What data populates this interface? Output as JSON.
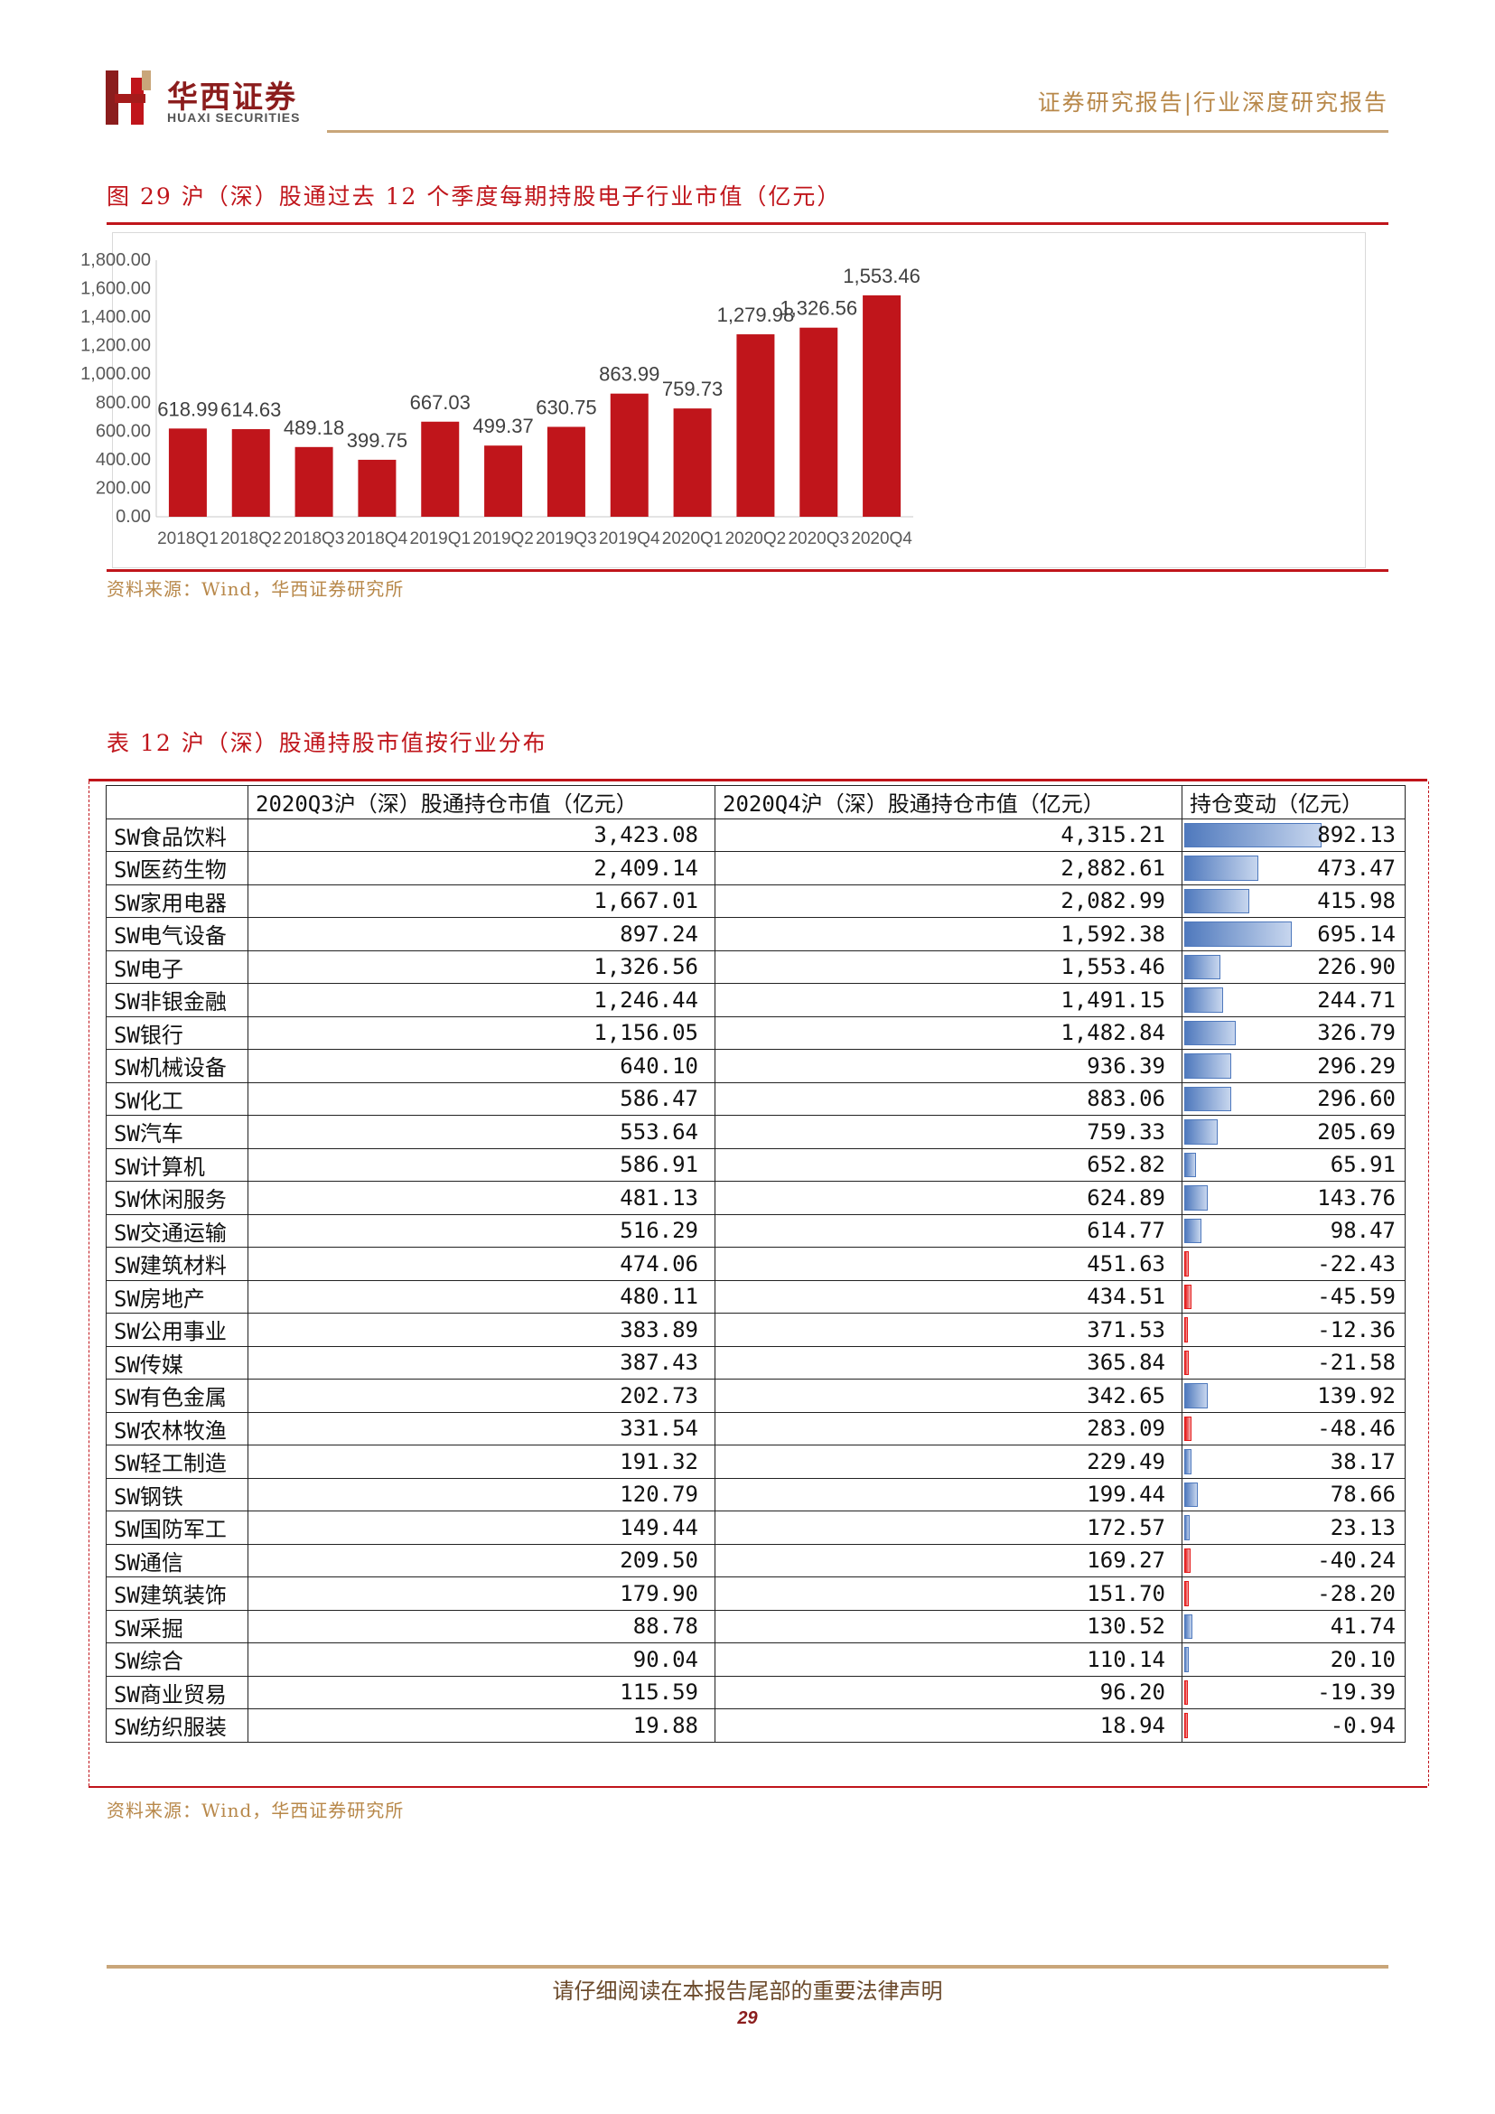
{
  "header": {
    "brand_cn": "华西证券",
    "brand_en": "HUAXI SECURITIES",
    "right_text": "证券研究报告|行业深度研究报告",
    "brand_color": "#8b1d1d",
    "accent_color": "#c0151b",
    "gold_color": "#b8884a"
  },
  "figure": {
    "title": "图 29  沪（深）股通过去 12 个季度每期持股电子行业市值（亿元）",
    "source": "资料来源：Wind，华西证券研究所"
  },
  "chart_data": {
    "type": "bar",
    "categories": [
      "2018Q1",
      "2018Q2",
      "2018Q3",
      "2018Q4",
      "2019Q1",
      "2019Q2",
      "2019Q3",
      "2019Q4",
      "2020Q1",
      "2020Q2",
      "2020Q3",
      "2020Q4"
    ],
    "values": [
      618.99,
      614.63,
      489.18,
      399.75,
      667.03,
      499.37,
      630.75,
      863.99,
      759.73,
      1279.98,
      1326.56,
      1553.46
    ],
    "value_labels": [
      "618.99",
      "614.63",
      "489.18",
      "399.75",
      "667.03",
      "499.37",
      "630.75",
      "863.99",
      "759.73",
      "1,279.98",
      "1,326.56",
      "1,553.46"
    ],
    "y_ticks": [
      "0.00",
      "200.00",
      "400.00",
      "600.00",
      "800.00",
      "1,000.00",
      "1,200.00",
      "1,400.00",
      "1,600.00",
      "1,800.00"
    ],
    "ylim": [
      0,
      1800
    ],
    "bar_color": "#c0151b",
    "grid": false,
    "legend": "none",
    "title": "",
    "xlabel": "",
    "ylabel": ""
  },
  "table": {
    "title": "表 12 沪（深）股通持股市值按行业分布",
    "headers": [
      "",
      "2020Q3沪（深）股通持仓市值（亿元）",
      "2020Q4沪（深）股通持仓市值（亿元）",
      "持仓变动（亿元）"
    ],
    "rows": [
      {
        "name": "SW食品饮料",
        "q3": "3,423.08",
        "q4": "4,315.21",
        "chg": "892.13",
        "chg_value": 892.13
      },
      {
        "name": "SW医药生物",
        "q3": "2,409.14",
        "q4": "2,882.61",
        "chg": "473.47",
        "chg_value": 473.47
      },
      {
        "name": "SW家用电器",
        "q3": "1,667.01",
        "q4": "2,082.99",
        "chg": "415.98",
        "chg_value": 415.98
      },
      {
        "name": "SW电气设备",
        "q3": "897.24",
        "q4": "1,592.38",
        "chg": "695.14",
        "chg_value": 695.14
      },
      {
        "name": "SW电子",
        "q3": "1,326.56",
        "q4": "1,553.46",
        "chg": "226.90",
        "chg_value": 226.9
      },
      {
        "name": "SW非银金融",
        "q3": "1,246.44",
        "q4": "1,491.15",
        "chg": "244.71",
        "chg_value": 244.71
      },
      {
        "name": "SW银行",
        "q3": "1,156.05",
        "q4": "1,482.84",
        "chg": "326.79",
        "chg_value": 326.79
      },
      {
        "name": "SW机械设备",
        "q3": "640.10",
        "q4": "936.39",
        "chg": "296.29",
        "chg_value": 296.29
      },
      {
        "name": "SW化工",
        "q3": "586.47",
        "q4": "883.06",
        "chg": "296.60",
        "chg_value": 296.6
      },
      {
        "name": "SW汽车",
        "q3": "553.64",
        "q4": "759.33",
        "chg": "205.69",
        "chg_value": 205.69
      },
      {
        "name": "SW计算机",
        "q3": "586.91",
        "q4": "652.82",
        "chg": "65.91",
        "chg_value": 65.91
      },
      {
        "name": "SW休闲服务",
        "q3": "481.13",
        "q4": "624.89",
        "chg": "143.76",
        "chg_value": 143.76
      },
      {
        "name": "SW交通运输",
        "q3": "516.29",
        "q4": "614.77",
        "chg": "98.47",
        "chg_value": 98.47
      },
      {
        "name": "SW建筑材料",
        "q3": "474.06",
        "q4": "451.63",
        "chg": "-22.43",
        "chg_value": -22.43
      },
      {
        "name": "SW房地产",
        "q3": "480.11",
        "q4": "434.51",
        "chg": "-45.59",
        "chg_value": -45.59
      },
      {
        "name": "SW公用事业",
        "q3": "383.89",
        "q4": "371.53",
        "chg": "-12.36",
        "chg_value": -12.36
      },
      {
        "name": "SW传媒",
        "q3": "387.43",
        "q4": "365.84",
        "chg": "-21.58",
        "chg_value": -21.58
      },
      {
        "name": "SW有色金属",
        "q3": "202.73",
        "q4": "342.65",
        "chg": "139.92",
        "chg_value": 139.92
      },
      {
        "name": "SW农林牧渔",
        "q3": "331.54",
        "q4": "283.09",
        "chg": "-48.46",
        "chg_value": -48.46
      },
      {
        "name": "SW轻工制造",
        "q3": "191.32",
        "q4": "229.49",
        "chg": "38.17",
        "chg_value": 38.17
      },
      {
        "name": "SW钢铁",
        "q3": "120.79",
        "q4": "199.44",
        "chg": "78.66",
        "chg_value": 78.66
      },
      {
        "name": "SW国防军工",
        "q3": "149.44",
        "q4": "172.57",
        "chg": "23.13",
        "chg_value": 23.13
      },
      {
        "name": "SW通信",
        "q3": "209.50",
        "q4": "169.27",
        "chg": "-40.24",
        "chg_value": -40.24
      },
      {
        "name": "SW建筑装饰",
        "q3": "179.90",
        "q4": "151.70",
        "chg": "-28.20",
        "chg_value": -28.2
      },
      {
        "name": "SW采掘",
        "q3": "88.78",
        "q4": "130.52",
        "chg": "41.74",
        "chg_value": 41.74
      },
      {
        "name": "SW综合",
        "q3": "90.04",
        "q4": "110.14",
        "chg": "20.10",
        "chg_value": 20.1
      },
      {
        "name": "SW商业贸易",
        "q3": "115.59",
        "q4": "96.20",
        "chg": "-19.39",
        "chg_value": -19.39
      },
      {
        "name": "SW纺织服装",
        "q3": "19.88",
        "q4": "18.94",
        "chg": "-0.94",
        "chg_value": -0.94
      }
    ],
    "source": "资料来源：Wind，华西证券研究所"
  },
  "footer": {
    "disclaimer": "请仔细阅读在本报告尾部的重要法律声明",
    "page_number": "29"
  }
}
